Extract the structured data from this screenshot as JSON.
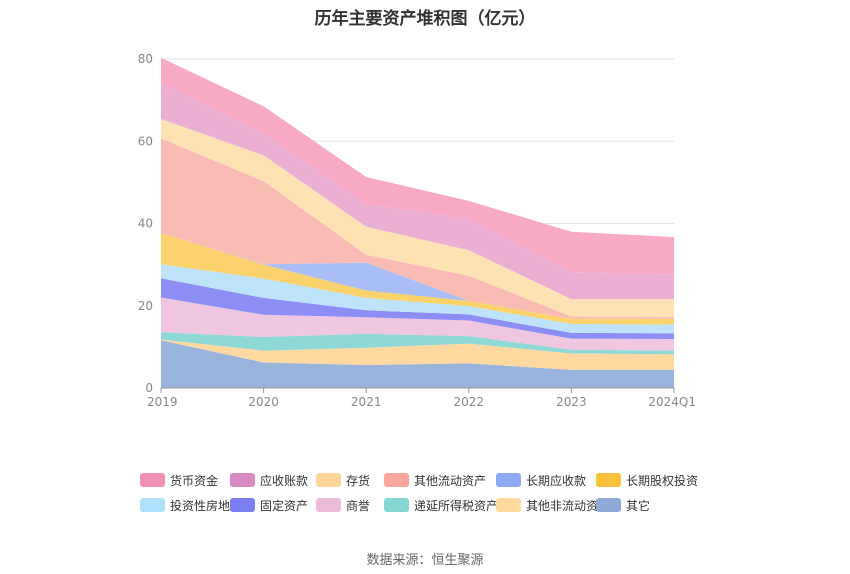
{
  "title": "历年主要资产堆积图（亿元）",
  "source": "数据来源：恒生聚源",
  "chart_data": {
    "type": "area",
    "stacked": true,
    "title": "历年主要资产堆积图（亿元）",
    "xlabel": "",
    "ylabel": "",
    "categories": [
      "2019",
      "2020",
      "2021",
      "2022",
      "2023",
      "2024Q1"
    ],
    "ylim": [
      0,
      80
    ],
    "yticks": [
      0,
      20,
      40,
      60,
      80
    ],
    "grid": true,
    "legend_position": "bottom",
    "series": [
      {
        "name": "其它",
        "color": "#98b3dc",
        "values": [
          11.6,
          6.2,
          5.6,
          6.0,
          4.4,
          4.4
        ]
      },
      {
        "name": "其他非流动资产",
        "color": "#ffd9a0",
        "values": [
          0.2,
          2.9,
          4.2,
          4.8,
          4.0,
          3.8
        ]
      },
      {
        "name": "递延所得税资产",
        "color": "#8ed8d8",
        "values": [
          1.8,
          3.3,
          3.4,
          1.8,
          0.9,
          0.9
        ]
      },
      {
        "name": "商誉",
        "color": "#f0c6e0",
        "values": [
          8.4,
          5.4,
          4.0,
          3.8,
          2.7,
          2.8
        ]
      },
      {
        "name": "固定资产",
        "color": "#8c8ef5",
        "values": [
          4.7,
          4.1,
          1.7,
          1.5,
          1.4,
          1.4
        ]
      },
      {
        "name": "投资性房地产",
        "color": "#bde4fa",
        "values": [
          3.4,
          4.7,
          3.0,
          2.0,
          2.2,
          2.1
        ]
      },
      {
        "name": "长期股权投资",
        "color": "#fbd26b",
        "values": [
          7.6,
          3.4,
          1.8,
          1.3,
          1.2,
          1.4
        ]
      },
      {
        "name": "长期应收款",
        "color": "#a9bdf6",
        "values": [
          0,
          0.1,
          6.8,
          0,
          0,
          0
        ]
      },
      {
        "name": "其他流动资产",
        "color": "#f8bcb5",
        "values": [
          23.0,
          20.2,
          1.9,
          6.1,
          0.6,
          0.5
        ]
      },
      {
        "name": "存货",
        "color": "#ffe2b3",
        "values": [
          4.7,
          6.3,
          6.8,
          6.2,
          4.2,
          4.3
        ]
      },
      {
        "name": "应收账款",
        "color": "#ebafd4",
        "values": [
          8.6,
          5.2,
          5.5,
          7.6,
          6.6,
          6.0
        ]
      },
      {
        "name": "货币资金",
        "color": "#f8a9c6",
        "values": [
          6.3,
          6.7,
          6.6,
          4.4,
          9.8,
          9.1
        ]
      }
    ]
  },
  "legend": [
    {
      "name": "货币资金",
      "color": "#f48fb5"
    },
    {
      "name": "应收账款",
      "color": "#d98bc4"
    },
    {
      "name": "存货",
      "color": "#ffd699"
    },
    {
      "name": "其他流动资产",
      "color": "#f7a69c"
    },
    {
      "name": "长期应收款",
      "color": "#8eaaf6"
    },
    {
      "name": "长期股权投资",
      "color": "#f9c23c"
    },
    {
      "name": "投资性房地产",
      "color": "#aee0fb"
    },
    {
      "name": "固定资产",
      "color": "#7b7ff3"
    },
    {
      "name": "商誉",
      "color": "#ebbbd9"
    },
    {
      "name": "递延所得税资产",
      "color": "#85d6d3"
    },
    {
      "name": "其他非流动资产",
      "color": "#ffd99e"
    },
    {
      "name": "其它",
      "color": "#8fa9d9"
    }
  ]
}
